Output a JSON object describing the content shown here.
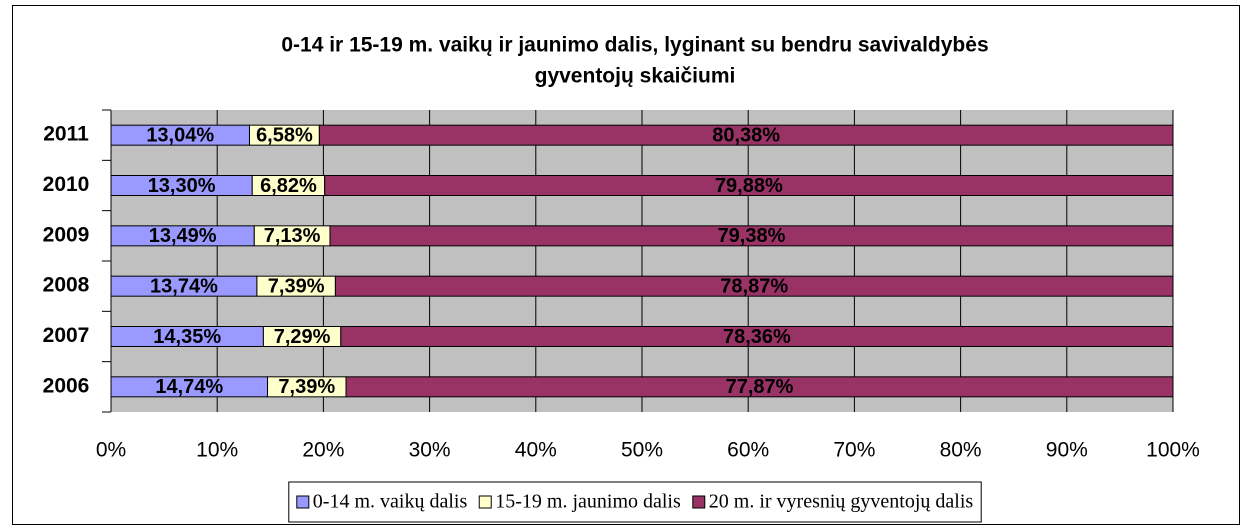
{
  "chart_data": {
    "type": "stacked-barh",
    "title": [
      "0-14 ir 15-19 m. vaikų ir jaunimo dalis, lyginant su bendru savivaldybės",
      "gyventojų skaičiumi"
    ],
    "categories": [
      "2006",
      "2007",
      "2008",
      "2009",
      "2010",
      "2011"
    ],
    "series": [
      {
        "name": "0-14 m. vaikų dalis",
        "color": "#9999ff",
        "values": [
          14.74,
          14.35,
          13.74,
          13.49,
          13.3,
          13.04
        ],
        "value_labels": [
          "14,74%",
          "14,35%",
          "13,74%",
          "13,49%",
          "13,30%",
          "13,04%"
        ]
      },
      {
        "name": "15-19 m. jaunimo dalis",
        "color": "#ffffcc",
        "values": [
          7.39,
          7.29,
          7.39,
          7.13,
          6.82,
          6.58
        ],
        "value_labels": [
          "7,39%",
          "7,29%",
          "7,39%",
          "7,13%",
          "6,82%",
          "6,58%"
        ]
      },
      {
        "name": "20 m. ir vyresnių gyventojų dalis",
        "color": "#993366",
        "values": [
          77.87,
          78.36,
          78.87,
          79.38,
          79.88,
          80.38
        ],
        "value_labels": [
          "77,87%",
          "78,36%",
          "78,87%",
          "79,38%",
          "79,88%",
          "80,38%"
        ]
      }
    ],
    "xlim": [
      0,
      100
    ],
    "xticks": [
      {
        "value": 0,
        "label": "0%"
      },
      {
        "value": 10,
        "label": "10%"
      },
      {
        "value": 20,
        "label": "20%"
      },
      {
        "value": 30,
        "label": "30%"
      },
      {
        "value": 40,
        "label": "40%"
      },
      {
        "value": 50,
        "label": "50%"
      },
      {
        "value": 60,
        "label": "60%"
      },
      {
        "value": 70,
        "label": "70%"
      },
      {
        "value": 80,
        "label": "80%"
      },
      {
        "value": 90,
        "label": "90%"
      },
      {
        "value": 100,
        "label": "100%"
      }
    ],
    "grid": true,
    "plot_background": "#c0c0c0",
    "legend": "bottom"
  }
}
